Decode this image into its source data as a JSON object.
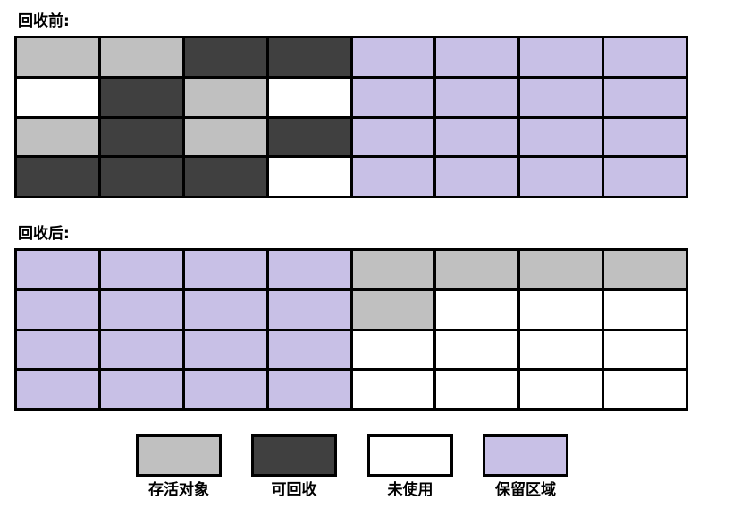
{
  "colors": {
    "live": "#c0c0c0",
    "reclaimable": "#404040",
    "unused": "#ffffff",
    "reserved": "#c8c0e6"
  },
  "before": {
    "title": "回收前:",
    "rows": [
      [
        "live",
        "live",
        "reclaimable",
        "reclaimable",
        "reserved",
        "reserved",
        "reserved",
        "reserved"
      ],
      [
        "unused",
        "reclaimable",
        "live",
        "unused",
        "reserved",
        "reserved",
        "reserved",
        "reserved"
      ],
      [
        "live",
        "reclaimable",
        "live",
        "reclaimable",
        "reserved",
        "reserved",
        "reserved",
        "reserved"
      ],
      [
        "reclaimable",
        "reclaimable",
        "reclaimable",
        "unused",
        "reserved",
        "reserved",
        "reserved",
        "reserved"
      ]
    ]
  },
  "after": {
    "title": "回收后:",
    "rows": [
      [
        "reserved",
        "reserved",
        "reserved",
        "reserved",
        "live",
        "live",
        "live",
        "live"
      ],
      [
        "reserved",
        "reserved",
        "reserved",
        "reserved",
        "live",
        "unused",
        "unused",
        "unused"
      ],
      [
        "reserved",
        "reserved",
        "reserved",
        "reserved",
        "unused",
        "unused",
        "unused",
        "unused"
      ],
      [
        "reserved",
        "reserved",
        "reserved",
        "reserved",
        "unused",
        "unused",
        "unused",
        "unused"
      ]
    ]
  },
  "legend": [
    {
      "key": "live",
      "label": "存活对象"
    },
    {
      "key": "reclaimable",
      "label": "可回收"
    },
    {
      "key": "unused",
      "label": "未使用"
    },
    {
      "key": "reserved",
      "label": "保留区域"
    }
  ]
}
